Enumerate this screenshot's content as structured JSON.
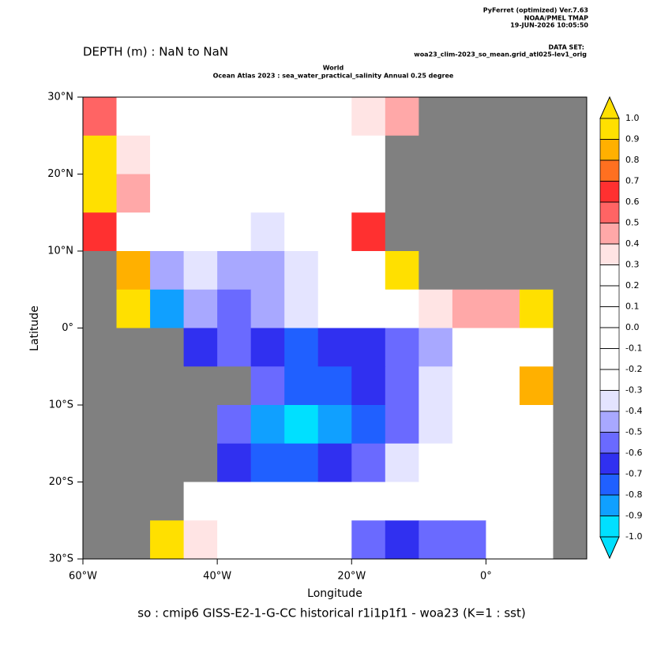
{
  "chart_data": {
    "type": "heatmap",
    "header": [
      "PyFerret (optimized) Ver.7.63",
      "NOAA/PMEL TMAP",
      "19-JUN-2026 10:05:50"
    ],
    "dataset_label": "DATA SET:",
    "dataset": "woa23_clim-2023_so_mean.grid_atl025-lev1_orig",
    "depth_label": "DEPTH (m) : NaN to NaN",
    "title": "World",
    "subtitle": "Ocean Atlas 2023 : sea_water_practical_salinity Annual  0.25 degree",
    "x_label": "Longitude",
    "y_label": "Latitude",
    "caption": "so : cmip6 GISS-E2-1-G-CC historical r1i1p1f1 - woa23  (K=1 : sst)",
    "xlim": [
      -60,
      15
    ],
    "ylim": [
      -30,
      30
    ],
    "xticks": [
      {
        "value": -60,
        "label": "60°W"
      },
      {
        "value": -40,
        "label": "40°W"
      },
      {
        "value": -20,
        "label": "20°W"
      },
      {
        "value": 0,
        "label": "0°"
      }
    ],
    "yticks": [
      {
        "value": 30,
        "label": "30°N"
      },
      {
        "value": 20,
        "label": "20°N"
      },
      {
        "value": 10,
        "label": "10°N"
      },
      {
        "value": 0,
        "label": "0°"
      },
      {
        "value": -10,
        "label": "10°S"
      },
      {
        "value": -20,
        "label": "20°S"
      },
      {
        "value": -30,
        "label": "30°S"
      }
    ],
    "x": [
      -57.5,
      -52.5,
      -47.5,
      -42.5,
      -37.5,
      -32.5,
      -27.5,
      -22.5,
      -17.5,
      -12.5,
      -7.5,
      -2.5,
      2.5,
      7.5,
      12.5
    ],
    "y": [
      27.5,
      22.5,
      17.5,
      12.5,
      7.5,
      2.5,
      -2.5,
      -7.5,
      -12.5,
      -17.5,
      -22.5,
      -27.5
    ],
    "values": [
      [
        0.5,
        0.1,
        -0.1,
        -0.2,
        -0.1,
        0.0,
        0.1,
        0.2,
        0.3,
        0.4,
        null,
        null,
        null,
        null,
        null
      ],
      [
        0.9,
        0.3,
        0.0,
        -0.1,
        0.0,
        0.0,
        0.0,
        -0.2,
        -0.1,
        null,
        null,
        null,
        null,
        null,
        null
      ],
      [
        1.0,
        0.4,
        0.0,
        0.0,
        -0.1,
        -0.1,
        -0.1,
        0.0,
        0.0,
        null,
        null,
        null,
        null,
        null,
        null
      ],
      [
        0.6,
        0.0,
        -0.1,
        -0.3,
        -0.3,
        -0.4,
        -0.3,
        -0.1,
        0.6,
        null,
        null,
        null,
        null,
        null,
        null
      ],
      [
        null,
        0.8,
        -0.5,
        -0.4,
        -0.5,
        -0.5,
        -0.4,
        -0.3,
        -0.1,
        0.9,
        null,
        null,
        null,
        null,
        null
      ],
      [
        null,
        1.0,
        -0.9,
        -0.5,
        -0.6,
        -0.5,
        -0.4,
        -0.3,
        -0.2,
        0.0,
        0.3,
        0.4,
        0.4,
        1.0,
        null
      ],
      [
        null,
        null,
        null,
        -0.7,
        -0.6,
        -0.7,
        -0.8,
        -0.7,
        -0.7,
        -0.6,
        -0.5,
        -0.3,
        0.0,
        0.2,
        null
      ],
      [
        null,
        null,
        null,
        null,
        null,
        -0.6,
        -0.8,
        -0.8,
        -0.7,
        -0.6,
        -0.4,
        -0.3,
        -0.2,
        0.8,
        null
      ],
      [
        null,
        null,
        null,
        null,
        -0.6,
        -0.9,
        -1.0,
        -0.9,
        -0.8,
        -0.6,
        -0.4,
        -0.3,
        -0.2,
        -0.1,
        null
      ],
      [
        null,
        null,
        null,
        null,
        -0.7,
        -0.8,
        -0.8,
        -0.7,
        -0.6,
        -0.4,
        -0.3,
        -0.2,
        -0.1,
        0.0,
        null
      ],
      [
        null,
        null,
        null,
        -0.2,
        -0.3,
        -0.3,
        -0.2,
        -0.3,
        -0.2,
        -0.1,
        -0.1,
        0.0,
        0.1,
        0.0,
        null
      ],
      [
        null,
        null,
        0.9,
        0.3,
        -0.2,
        -0.1,
        -0.1,
        -0.3,
        -0.6,
        -0.7,
        -0.6,
        -0.6,
        -0.3,
        0.1,
        null
      ]
    ],
    "land_color": "#808080",
    "colorbar": {
      "levels": [
        {
          "value": 1,
          "label": "1.0"
        },
        0.9,
        0.8,
        0.7,
        0.6,
        0.5,
        0.4,
        0.3,
        0.2,
        0.1,
        {
          "value": 0,
          "label": "0.0"
        },
        -0.1,
        -0.2,
        -0.3,
        -0.4,
        -0.5,
        -0.6,
        -0.7,
        -0.8,
        -0.9,
        {
          "value": -1,
          "label": "-1.0"
        }
      ],
      "colors": [
        "#ffe000",
        "#ffb000",
        "#ff7020",
        "#ff3030",
        "#ff6464",
        "#ffa8a8",
        "#ffe4e4",
        "#ffffff",
        "#ffffff",
        "#ffffff",
        "#ffffff",
        "#ffffff",
        "#ffffff",
        "#e4e4ff",
        "#a8a8ff",
        "#6a6aff",
        "#3030f0",
        "#2060ff",
        "#10a0ff",
        "#00e0ff"
      ]
    }
  }
}
